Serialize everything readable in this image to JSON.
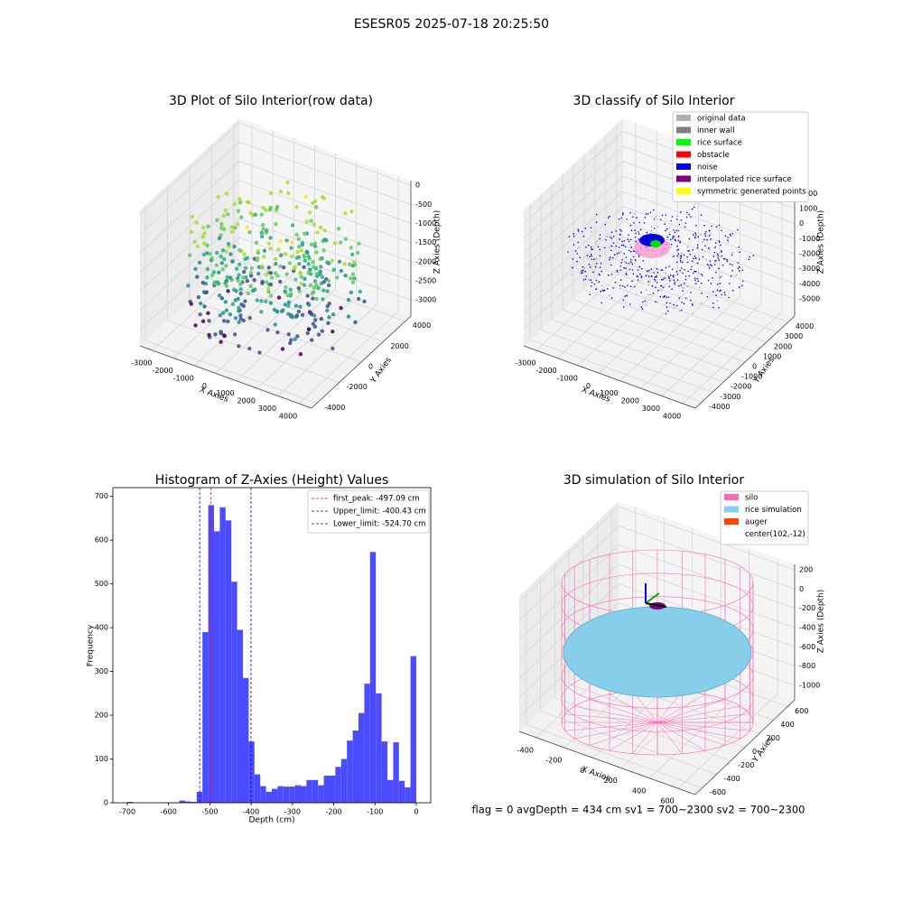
{
  "suptitle": "ESESR05 2025-07-18 20:25:50",
  "status_text": "flag = 0     avgDepth = 434 cm  sv1 = 700~2300  sv2 = 700~2300",
  "chart_data": [
    {
      "type": "scatter3d",
      "title": "3D Plot of Silo Interior(row data)",
      "xlabel": "X Axies",
      "ylabel": "Y Axies",
      "zlabel": "Z Axies (Depth)",
      "xlim": [
        -3600,
        4600
      ],
      "ylim": [
        -4500,
        4500
      ],
      "zlim": [
        -3420,
        120
      ],
      "xticks": [
        -3000,
        -2000,
        -1000,
        0,
        1000,
        2000,
        3000,
        4000
      ],
      "yticks": [
        -4000,
        -2000,
        0,
        2000,
        4000
      ],
      "zticks": [
        0,
        -500,
        -1000,
        -1500,
        -2000,
        -2500,
        -3000
      ]
    },
    {
      "type": "scatter3d",
      "title": "3D classify of Silo Interior",
      "xlabel": "X Axies",
      "ylabel": "Y Axies",
      "zlabel": "Z Axies (Depth)",
      "xlim": [
        -3600,
        4600
      ],
      "ylim": [
        -4600,
        4600
      ],
      "zlim": [
        -6140,
        2860
      ],
      "xticks": [
        -3000,
        -2000,
        -1000,
        0,
        1000,
        2000,
        3000,
        4000
      ],
      "yticks": [
        -4000,
        -3000,
        -2000,
        -1000,
        0,
        1000,
        2000,
        3000,
        4000
      ],
      "zticks": [
        2000,
        1000,
        0,
        -1000,
        -2000,
        -3000,
        -4000,
        -5000
      ],
      "legend": [
        {
          "name": "original data",
          "color": "#b0b0b0"
        },
        {
          "name": "inner wall",
          "color": "#808080"
        },
        {
          "name": "rice surface",
          "color": "#00ff00"
        },
        {
          "name": "obstacle",
          "color": "#ff0000"
        },
        {
          "name": "noise",
          "color": "#0000ff"
        },
        {
          "name": "interpolated rice surface",
          "color": "#800080"
        },
        {
          "name": "symmetric generated points",
          "color": "#ffff00"
        }
      ]
    },
    {
      "type": "histogram",
      "title": "Histogram of Z-Axies (Height) Values",
      "xlabel": "Depth (cm)",
      "ylabel": "Frequency",
      "color": "#4c4cff",
      "bins": [
        -700,
        -686,
        -672,
        -658,
        -644,
        -630,
        -616,
        -602,
        -588,
        -574,
        -560,
        -546,
        -532,
        -518,
        -504,
        -490,
        -476,
        -462,
        -448,
        -434,
        -420,
        -406,
        -392,
        -378,
        -364,
        -350,
        -336,
        -322,
        -308,
        -294,
        -280,
        -266,
        -252,
        -238,
        -224,
        -210,
        -196,
        -182,
        -168,
        -154,
        -140,
        -126,
        -112,
        -98,
        -84,
        -70,
        -56,
        -42,
        -28,
        -14,
        0
      ],
      "values": [
        2,
        0,
        0,
        0,
        0,
        0,
        1,
        1,
        1,
        5,
        3,
        2,
        25,
        390,
        680,
        620,
        675,
        645,
        505,
        395,
        285,
        140,
        65,
        38,
        25,
        32,
        38,
        37,
        37,
        40,
        38,
        52,
        52,
        40,
        62,
        62,
        82,
        100,
        142,
        165,
        205,
        272,
        573,
        250,
        140,
        52,
        138,
        50,
        35,
        335
      ],
      "xlim": [
        -735,
        35
      ],
      "ylim": [
        0,
        720
      ],
      "xticks": [
        -700,
        -600,
        -500,
        -400,
        -300,
        -200,
        -100,
        0
      ],
      "yticks": [
        0,
        100,
        200,
        300,
        400,
        500,
        600,
        700
      ],
      "vlines": [
        {
          "label": "first_peak: -497.09 cm",
          "value": -497.09,
          "color": "#ff0000"
        },
        {
          "label": "Upper_limit: -400.43 cm",
          "value": -400.43,
          "color": "#0000ff"
        },
        {
          "label": "Lower_limit: -524.70 cm",
          "value": -524.7,
          "color": "#0000ff"
        }
      ]
    },
    {
      "type": "surface3d",
      "title": "3D simulation of Silo Interior",
      "xlabel": "X Axies",
      "ylabel": "Y Axies",
      "zlabel": "Z Axies (Depth)",
      "xlim": [
        -520,
        720
      ],
      "ylim": [
        -700,
        700
      ],
      "zlim": [
        -1150,
        256
      ],
      "xticks": [
        -400,
        -200,
        0,
        200,
        400,
        600
      ],
      "yticks": [
        -600,
        -400,
        -200,
        0,
        200,
        400,
        600
      ],
      "zticks": [
        200,
        0,
        -200,
        -400,
        -600,
        -800,
        -1000
      ],
      "legend": [
        {
          "name": "silo",
          "color": "#ff69b4"
        },
        {
          "name": "rice simulation",
          "color": "#87ceeb"
        },
        {
          "name": "auger",
          "color": "#ff4500"
        },
        {
          "name": "center(102,-12)"
        }
      ]
    }
  ]
}
